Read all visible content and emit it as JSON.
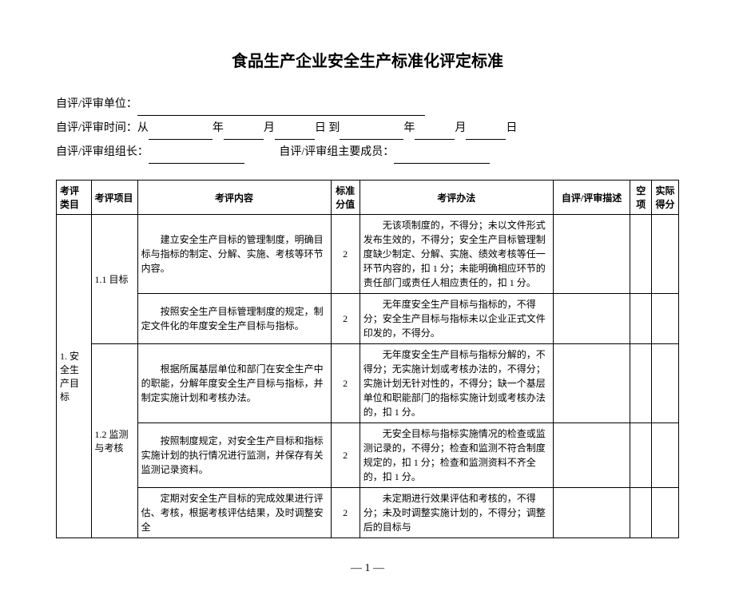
{
  "title": "食品生产企业安全生产标准化评定标准",
  "meta": {
    "org_label": "自评/评审单位：",
    "time_label": "自评/评审时间：从",
    "y": "年",
    "m": "月",
    "d": "日",
    "to": "到",
    "leader_label": "自评/评审组组长：",
    "members_label": "自评/评审组主要成员："
  },
  "headers": {
    "category": "考评类目",
    "item": "考评项目",
    "content": "考评内容",
    "std_score": "标准分值",
    "method": "考评办法",
    "desc": "自评/评审描述",
    "empty": "空项",
    "actual": "实际得分"
  },
  "category": "1. 安全生产目标",
  "items": {
    "i1": "1.1 目标",
    "i2": "1.2 监测与考核"
  },
  "rows": [
    {
      "content": "建立安全生产目标的管理制度，明确目标与指标的制定、分解、实施、考核等环节内容。",
      "score": "2",
      "method": "无该项制度的，不得分；未以文件形式发布生效的，不得分；安全生产目标管理制度缺少制定、分解、实施、绩效考核等任一环节内容的，扣 1 分；未能明确相应环节的责任部门或责任人相应责任的，扣 1 分。"
    },
    {
      "content": "按照安全生产目标管理制度的规定，制定文件化的年度安全生产目标与指标。",
      "score": "2",
      "method": "无年度安全生产目标与指标的，不得分；安全生产目标与指标未以企业正式文件印发的，不得分。"
    },
    {
      "content": "根据所属基层单位和部门在安全生产中的职能，分解年度安全生产目标与指标，并制定实施计划和考核办法。",
      "score": "2",
      "method": "无年度安全生产目标与指标分解的，不得分；无实施计划或考核办法的，不得分；实施计划无针对性的，不得分；缺一个基层单位和职能部门的指标实施计划或考核办法的，扣 1 分。"
    },
    {
      "content": "按照制度规定，对安全生产目标和指标实施计划的执行情况进行监测，并保存有关监测记录资料。",
      "score": "2",
      "method": "无安全目标与指标实施情况的检查或监测记录的，不得分；检查和监测不符合制度规定的，扣 1 分；检查和监测资料不齐全的，扣 1 分。"
    },
    {
      "content": "定期对安全生产目标的完成效果进行评估、考核，根据考核评估结果，及时调整安全",
      "score": "2",
      "method": "未定期进行效果评估和考核的，不得分；未及时调整实施计划的，不得分；调整后的目标与"
    }
  ],
  "page": "— 1 —"
}
